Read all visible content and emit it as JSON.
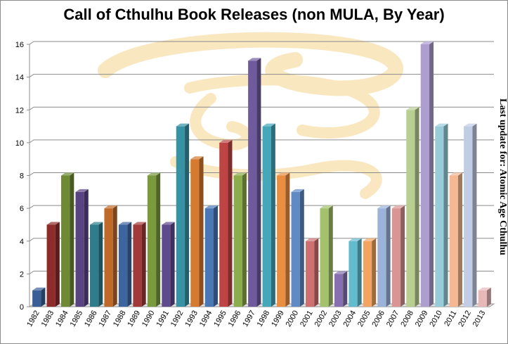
{
  "chart_data": {
    "type": "bar",
    "title": "Call of Cthulhu Book Releases (non MULA, By Year)",
    "side_note": "Last update for: Atomic Age Cthulhu",
    "xlabel": "",
    "ylabel": "",
    "ylim": [
      0,
      16
    ],
    "yticks": [
      "0",
      "2",
      "4",
      "6",
      "8",
      "10",
      "12",
      "14",
      "16"
    ],
    "grid": true,
    "legend": "none",
    "categories": [
      "1982",
      "1983",
      "1984",
      "1985",
      "1986",
      "1987",
      "1988",
      "1989",
      "1990",
      "1991",
      "1992",
      "1993",
      "1994",
      "1995",
      "1996",
      "1997",
      "1998",
      "1999",
      "2000",
      "2001",
      "2002",
      "2003",
      "2004",
      "2005",
      "2006",
      "2007",
      "2008",
      "2009",
      "2010",
      "2011",
      "2012",
      "2013"
    ],
    "values": [
      1,
      5,
      8,
      7,
      5,
      6,
      5,
      5,
      8,
      5,
      11,
      9,
      6,
      10,
      8,
      15,
      11,
      8,
      7,
      4,
      6,
      2,
      4,
      4,
      6,
      6,
      12,
      16,
      11,
      8,
      11,
      1
    ],
    "colors": [
      "#3a5f96",
      "#8e2b2b",
      "#6e8a35",
      "#5a4382",
      "#2f7d8c",
      "#c06a2a",
      "#3d66a0",
      "#a33a3a",
      "#7a9a3e",
      "#5e4a8c",
      "#3792a4",
      "#d67a30",
      "#4a78b4",
      "#bf4545",
      "#8cad4c",
      "#6f5a9e",
      "#44a7ba",
      "#ea8f41",
      "#5f8ac4",
      "#d06f6f",
      "#a4c16c",
      "#8670b0",
      "#63bbce",
      "#f2a460",
      "#9bb3d8",
      "#d99494",
      "#b9cf92",
      "#ae9ed0",
      "#98ccd9",
      "#f5b893",
      "#c0cde4",
      "#e6b8b8"
    ]
  }
}
